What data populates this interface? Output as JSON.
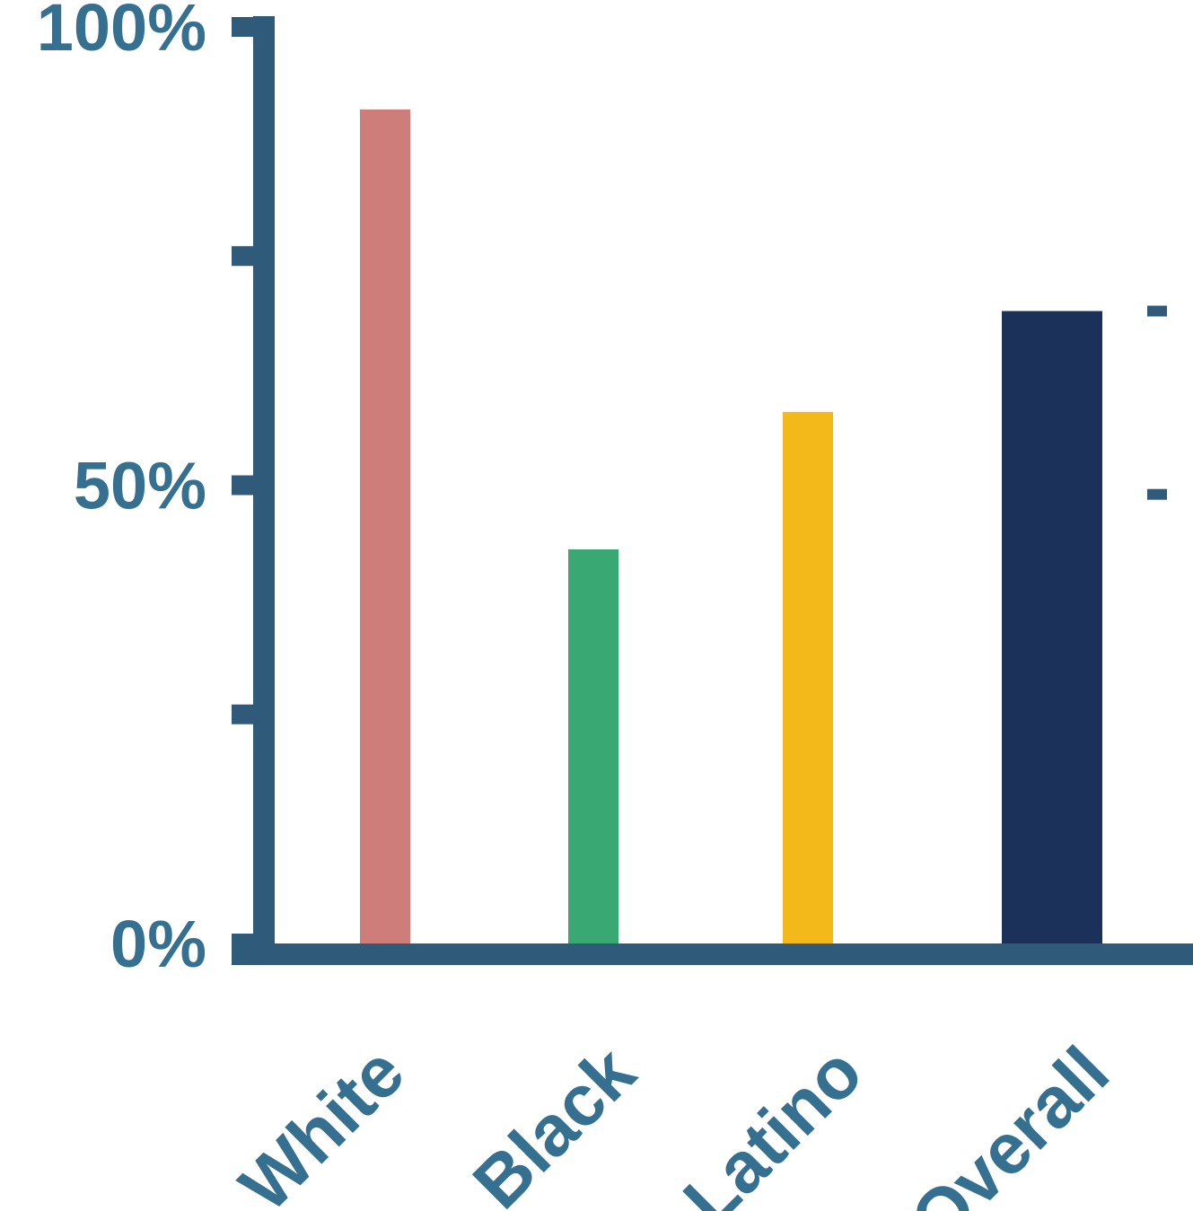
{
  "chart_data": {
    "type": "bar",
    "categories": [
      "White",
      "Black",
      "Latino",
      "Overall"
    ],
    "values": [
      91,
      43,
      58,
      69
    ],
    "colors": [
      "#cf7d7a",
      "#3aa872",
      "#f3b91b",
      "#1c315a"
    ],
    "ylim": [
      0,
      100
    ],
    "yticks": [
      {
        "value": 100,
        "label": "100%"
      },
      {
        "value": 75,
        "label": ""
      },
      {
        "value": 50,
        "label": "50%"
      },
      {
        "value": 25,
        "label": ""
      },
      {
        "value": 0,
        "label": "0%"
      }
    ],
    "right_axis_ticks": [
      69,
      49
    ],
    "axis_color": "#305a7a",
    "label_color": "#357090",
    "grid": false,
    "legend": "none"
  }
}
